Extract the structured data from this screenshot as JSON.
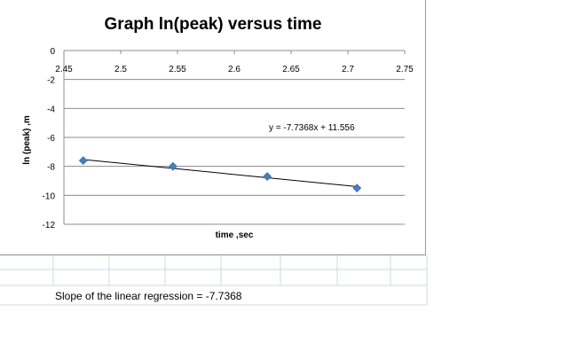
{
  "note": {
    "text": "Slope of the linear regression = -7.7368"
  },
  "chart_data": {
    "type": "scatter",
    "title": "Graph ln(peak) versus time",
    "xlabel": "time ,sec",
    "ylabel": "ln (peak) ,m",
    "xlim": [
      2.45,
      2.75
    ],
    "ylim": [
      -12,
      0
    ],
    "x_ticks": [
      "2.45",
      "2.5",
      "2.55",
      "2.6",
      "2.65",
      "2.7",
      "2.75"
    ],
    "y_ticks": [
      "0",
      "-2",
      "-4",
      "-6",
      "-8",
      "-10",
      "-12"
    ],
    "gridlines": "horizontal",
    "x_axis_at": 0,
    "points": [
      {
        "x": 2.467,
        "y": -7.6
      },
      {
        "x": 2.546,
        "y": -8.0
      },
      {
        "x": 2.629,
        "y": -8.7
      },
      {
        "x": 2.708,
        "y": -9.5
      }
    ],
    "trendline": {
      "slope": -7.7368,
      "intercept": 11.556,
      "label": "y = -7.7368x + 11.556"
    },
    "marker_color": "#4a7ebb",
    "line_color": "#000000",
    "grid_color": "#8c8c8c"
  }
}
